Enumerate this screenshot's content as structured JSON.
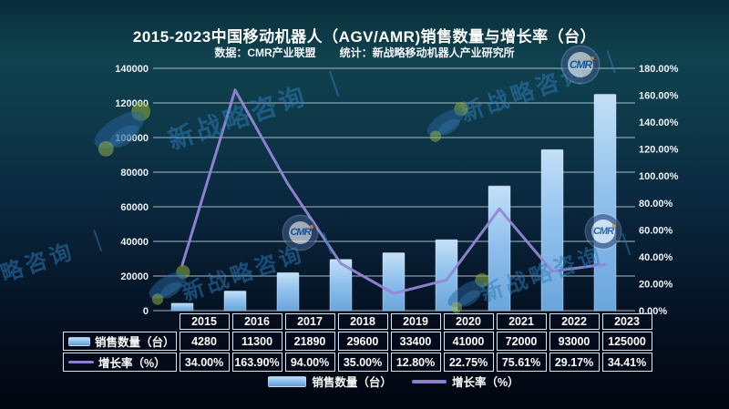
{
  "header": {
    "title": "2015-2023中国移动机器人（AGV/AMR)销售数量与增长率（台）",
    "data_source": "数据：CMR产业联盟",
    "statistics": "统计：新战略移动机器人产业研究所"
  },
  "chart_data": {
    "type": "bar",
    "combo": "bar+line",
    "title": "2015-2023中国移动机器人（AGV/AMR)销售数量与增长率（台）",
    "categories": [
      "2015",
      "2016",
      "2017",
      "2018",
      "2019",
      "2020",
      "2021",
      "2022",
      "2023"
    ],
    "series": [
      {
        "name": "销售数量（台）",
        "type": "bar",
        "axis": "left",
        "values": [
          4280,
          11300,
          21890,
          29600,
          33400,
          41000,
          72000,
          93000,
          125000
        ]
      },
      {
        "name": "增长率（%）",
        "type": "line",
        "axis": "right",
        "values": [
          34.0,
          163.9,
          94.0,
          35.0,
          12.8,
          22.75,
          75.61,
          29.17,
          34.41
        ]
      }
    ],
    "left_axis": {
      "min": 0,
      "max": 140000,
      "step": 20000,
      "tick_labels": [
        "0",
        "20000",
        "40000",
        "60000",
        "80000",
        "100000",
        "120000",
        "140000"
      ]
    },
    "right_axis": {
      "min": 0,
      "max": 180,
      "step": 20,
      "tick_labels": [
        "0.00%",
        "20.00%",
        "40.00%",
        "60.00%",
        "80.00%",
        "100.00%",
        "120.00%",
        "140.00%",
        "160.00%",
        "180.00%"
      ]
    },
    "grid": true,
    "legend_position": "bottom"
  },
  "table": {
    "year_header": [
      "2015",
      "2016",
      "2017",
      "2018",
      "2019",
      "2020",
      "2021",
      "2022",
      "2023"
    ],
    "rows": [
      {
        "label": "销售数量（台）",
        "swatch": "bar",
        "values": [
          "4280",
          "11300",
          "21890",
          "29600",
          "33400",
          "41000",
          "72000",
          "93000",
          "125000"
        ]
      },
      {
        "label": "增长率（%）",
        "swatch": "line",
        "values": [
          "34.00%",
          "163.90%",
          "94.00%",
          "35.00%",
          "12.80%",
          "22.75%",
          "75.61%",
          "29.17%",
          "34.41%"
        ]
      }
    ]
  },
  "legend": {
    "items": [
      {
        "label": "销售数量（台）",
        "swatch": "bar"
      },
      {
        "label": "增长率（%）",
        "swatch": "line"
      }
    ]
  },
  "watermark": {
    "brand_text": "新战略咨询",
    "separator": "｜",
    "badge_text": "CMR"
  },
  "colors": {
    "bar_light": "#c3e0f7",
    "bar_mid": "#92c2ee",
    "bar_dark": "#6aa5db",
    "line": "#9286d6",
    "grid": "#c3d2db",
    "background_top": "#10424f",
    "background_bottom": "#02060f",
    "table_border": "#dce6ee",
    "watermark_blue": "#2d7db9",
    "watermark_green": "#96b446",
    "badge_text_color": "#1a5ca8"
  }
}
